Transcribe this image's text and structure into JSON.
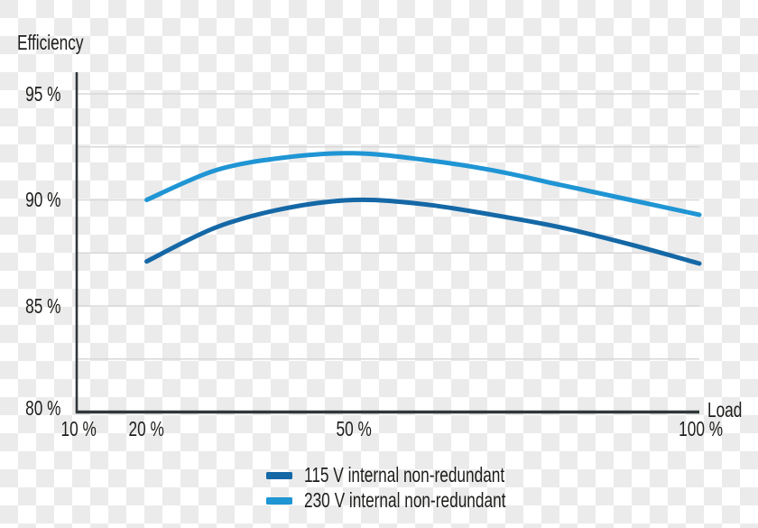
{
  "chart_data": {
    "type": "line",
    "title": "",
    "ylabel": "Efficiency",
    "xlabel": "Load",
    "x": [
      20,
      30,
      40,
      50,
      60,
      70,
      80,
      90,
      100
    ],
    "series": [
      {
        "name": "115 V internal non-redundant",
        "color": "#1568a6",
        "values": [
          87.1,
          88.7,
          89.6,
          90.0,
          89.8,
          89.3,
          88.7,
          87.9,
          87.0
        ]
      },
      {
        "name": "230 V internal non-redundant",
        "color": "#1f95d4",
        "values": [
          90.0,
          91.4,
          92.0,
          92.2,
          91.9,
          91.4,
          90.7,
          90.0,
          89.3
        ]
      }
    ],
    "xlim": [
      10,
      100
    ],
    "ylim": [
      80,
      95.5
    ],
    "grid": "horizontal",
    "grid_values": [
      95,
      92.5,
      90,
      87.5,
      85,
      82.5
    ],
    "y_ticks": [
      {
        "value": 95,
        "label": "95 %"
      },
      {
        "value": 90,
        "label": "90 %"
      },
      {
        "value": 85,
        "label": "85 %"
      },
      {
        "value": 80,
        "label": "80 %"
      }
    ],
    "x_ticks": [
      {
        "value": 10,
        "label": "10 %"
      },
      {
        "value": 20,
        "label": "20 %"
      },
      {
        "value": 50,
        "label": "50 %"
      },
      {
        "value": 100,
        "label": "100 %"
      }
    ],
    "legend_position": "bottom",
    "colors": {
      "axis": "#30373a",
      "grid": "#d8d8d8",
      "text": "#1d1d1b",
      "series_115v": "#1568a6",
      "series_230v": "#1f95d4",
      "checker_light": "#ffffff",
      "checker_gray": "#ebebeb"
    }
  },
  "legend": {
    "items": [
      {
        "label": "115 V internal non-redundant",
        "color": "#1568a6"
      },
      {
        "label": "230 V internal non-redundant",
        "color": "#1f95d4"
      }
    ]
  }
}
